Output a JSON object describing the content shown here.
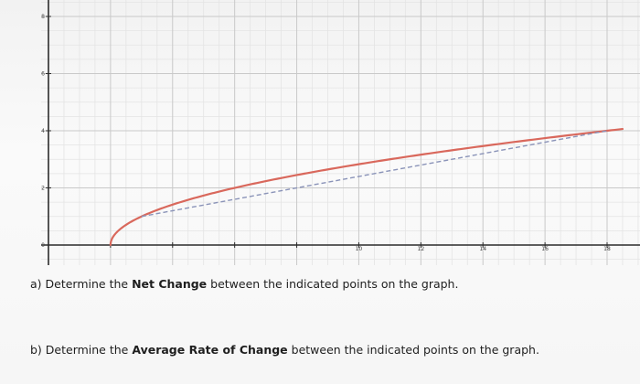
{
  "chart_data": {
    "type": "line",
    "title": "",
    "xlabel": "",
    "ylabel": "",
    "xlim": [
      0,
      18
    ],
    "ylim": [
      0,
      8
    ],
    "x_ticks": [
      0,
      2,
      4,
      6,
      8,
      10,
      12,
      14,
      16,
      18
    ],
    "x_tick_labels": [
      "",
      "",
      "",
      "",
      "",
      "10",
      "12",
      "14",
      "16",
      "18"
    ],
    "y_ticks": [
      0,
      2,
      4,
      6,
      8
    ],
    "y_tick_labels": [
      "0",
      "2",
      "4",
      "6",
      "8"
    ],
    "grid": true,
    "legend": "none",
    "series": [
      {
        "style": "solid",
        "color": "#d9685c",
        "function": "sqrt(x - 2)",
        "x": [
          2,
          2.05,
          2.2,
          2.5,
          3,
          3.5,
          4,
          5,
          6,
          7,
          8,
          9,
          10,
          11,
          12,
          13,
          14,
          15,
          16,
          17,
          18,
          18.5
        ],
        "y": [
          0,
          0.224,
          0.447,
          0.707,
          1,
          1.225,
          1.414,
          1.732,
          2,
          2.236,
          2.449,
          2.646,
          2.828,
          3,
          3.162,
          3.317,
          3.464,
          3.606,
          3.742,
          3.873,
          4,
          4.062
        ]
      },
      {
        "style": "dashed",
        "color": "#8a93b8",
        "x": [
          3,
          18
        ],
        "y": [
          1,
          4
        ]
      }
    ]
  },
  "questions": {
    "a": {
      "prefix": "a) Determine the ",
      "bold": "Net Change",
      "suffix": " between the indicated points on the graph."
    },
    "b": {
      "prefix": "b) Determine the ",
      "bold": "Average Rate of Change",
      "suffix": " between the indicated points on the graph."
    }
  }
}
